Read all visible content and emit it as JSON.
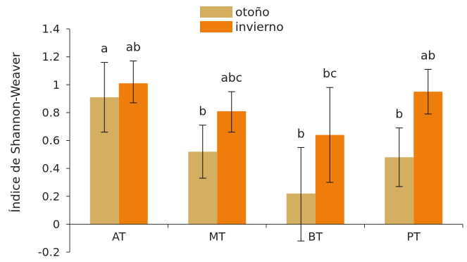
{
  "chart_data": {
    "type": "bar",
    "title": "",
    "xlabel": "",
    "ylabel": "Índice de Shannon-Weaver",
    "ylim": [
      -0.2,
      1.4
    ],
    "yticks": [
      "-0.2",
      "0",
      "0.2",
      "0.4",
      "0.6",
      "0.8",
      "1",
      "1.2",
      "1.4"
    ],
    "grid": false,
    "legend_position": "top-center",
    "categories": [
      "AT",
      "MT",
      "BT",
      "PT"
    ],
    "series": [
      {
        "name": "otoño",
        "color": "#D4AF62",
        "values": [
          0.91,
          0.52,
          0.22,
          0.48
        ],
        "err_low": [
          0.66,
          0.33,
          -0.12,
          0.27
        ],
        "err_high": [
          1.16,
          0.71,
          0.55,
          0.69
        ],
        "letters": [
          "a",
          "b",
          "b",
          "b"
        ]
      },
      {
        "name": "invierno",
        "color": "#EE7D0C",
        "values": [
          1.01,
          0.81,
          0.64,
          0.95
        ],
        "err_low": [
          0.87,
          0.66,
          0.3,
          0.79
        ],
        "err_high": [
          1.17,
          0.95,
          0.98,
          1.11
        ],
        "letters": [
          "ab",
          "abc",
          "bc",
          "ab"
        ]
      }
    ]
  }
}
